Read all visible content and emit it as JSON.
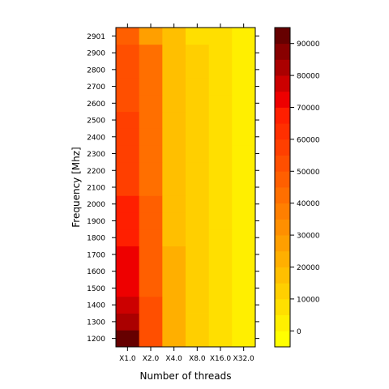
{
  "chart_data": {
    "type": "heatmap",
    "title": "",
    "xlabel": "Number of threads",
    "ylabel": "Frequency [Mhz]",
    "x": [
      "X1.0",
      "X2.0",
      "X4.0",
      "X8.0",
      "X16.0",
      "X32.0"
    ],
    "y": [
      "1200",
      "1300",
      "1400",
      "1500",
      "1600",
      "1700",
      "1800",
      "1900",
      "2000",
      "2100",
      "2200",
      "2300",
      "2400",
      "2500",
      "2600",
      "2700",
      "2800",
      "2900",
      "2901"
    ],
    "values": [
      [
        90000,
        50000,
        22000,
        10000,
        5000,
        3000
      ],
      [
        83000,
        50000,
        22000,
        10000,
        5000,
        3000
      ],
      [
        78000,
        50000,
        22000,
        10000,
        5000,
        3000
      ],
      [
        73000,
        45000,
        22000,
        10000,
        5000,
        3000
      ],
      [
        73000,
        45000,
        22000,
        10000,
        5000,
        3000
      ],
      [
        73000,
        45000,
        22000,
        10000,
        5000,
        3000
      ],
      [
        68000,
        45000,
        18000,
        10000,
        5000,
        3000
      ],
      [
        68000,
        45000,
        18000,
        10000,
        5000,
        3000
      ],
      [
        68000,
        45000,
        18000,
        10000,
        5000,
        3000
      ],
      [
        58000,
        40000,
        18000,
        10000,
        5000,
        3000
      ],
      [
        58000,
        40000,
        18000,
        10000,
        5000,
        3000
      ],
      [
        58000,
        40000,
        18000,
        10000,
        5000,
        3000
      ],
      [
        58000,
        40000,
        18000,
        10000,
        5000,
        3000
      ],
      [
        58000,
        40000,
        18000,
        10000,
        5000,
        3000
      ],
      [
        53000,
        40000,
        18000,
        10000,
        5000,
        3000
      ],
      [
        53000,
        40000,
        18000,
        10000,
        5000,
        3000
      ],
      [
        53000,
        40000,
        18000,
        10000,
        5000,
        3000
      ],
      [
        53000,
        40000,
        18000,
        10000,
        5000,
        1000
      ],
      [
        48000,
        28000,
        18000,
        5000,
        5000,
        1000
      ]
    ],
    "colorbar": {
      "ticks": [
        0,
        10000,
        20000,
        30000,
        40000,
        50000,
        60000,
        70000,
        80000,
        90000
      ],
      "min": -5000,
      "max": 95000,
      "step": 5000,
      "colors": [
        "#FFFF00",
        "#FFEF00",
        "#FFDF00",
        "#FFCF00",
        "#FFBF00",
        "#FFAF00",
        "#FF9F00",
        "#FF8F00",
        "#FF7F00",
        "#FF6F00",
        "#FF5F00",
        "#FF4F00",
        "#FF3F00",
        "#FF2F00",
        "#FF1F00",
        "#EE0000",
        "#CC0000",
        "#AA0000",
        "#880000",
        "#660000"
      ]
    }
  }
}
